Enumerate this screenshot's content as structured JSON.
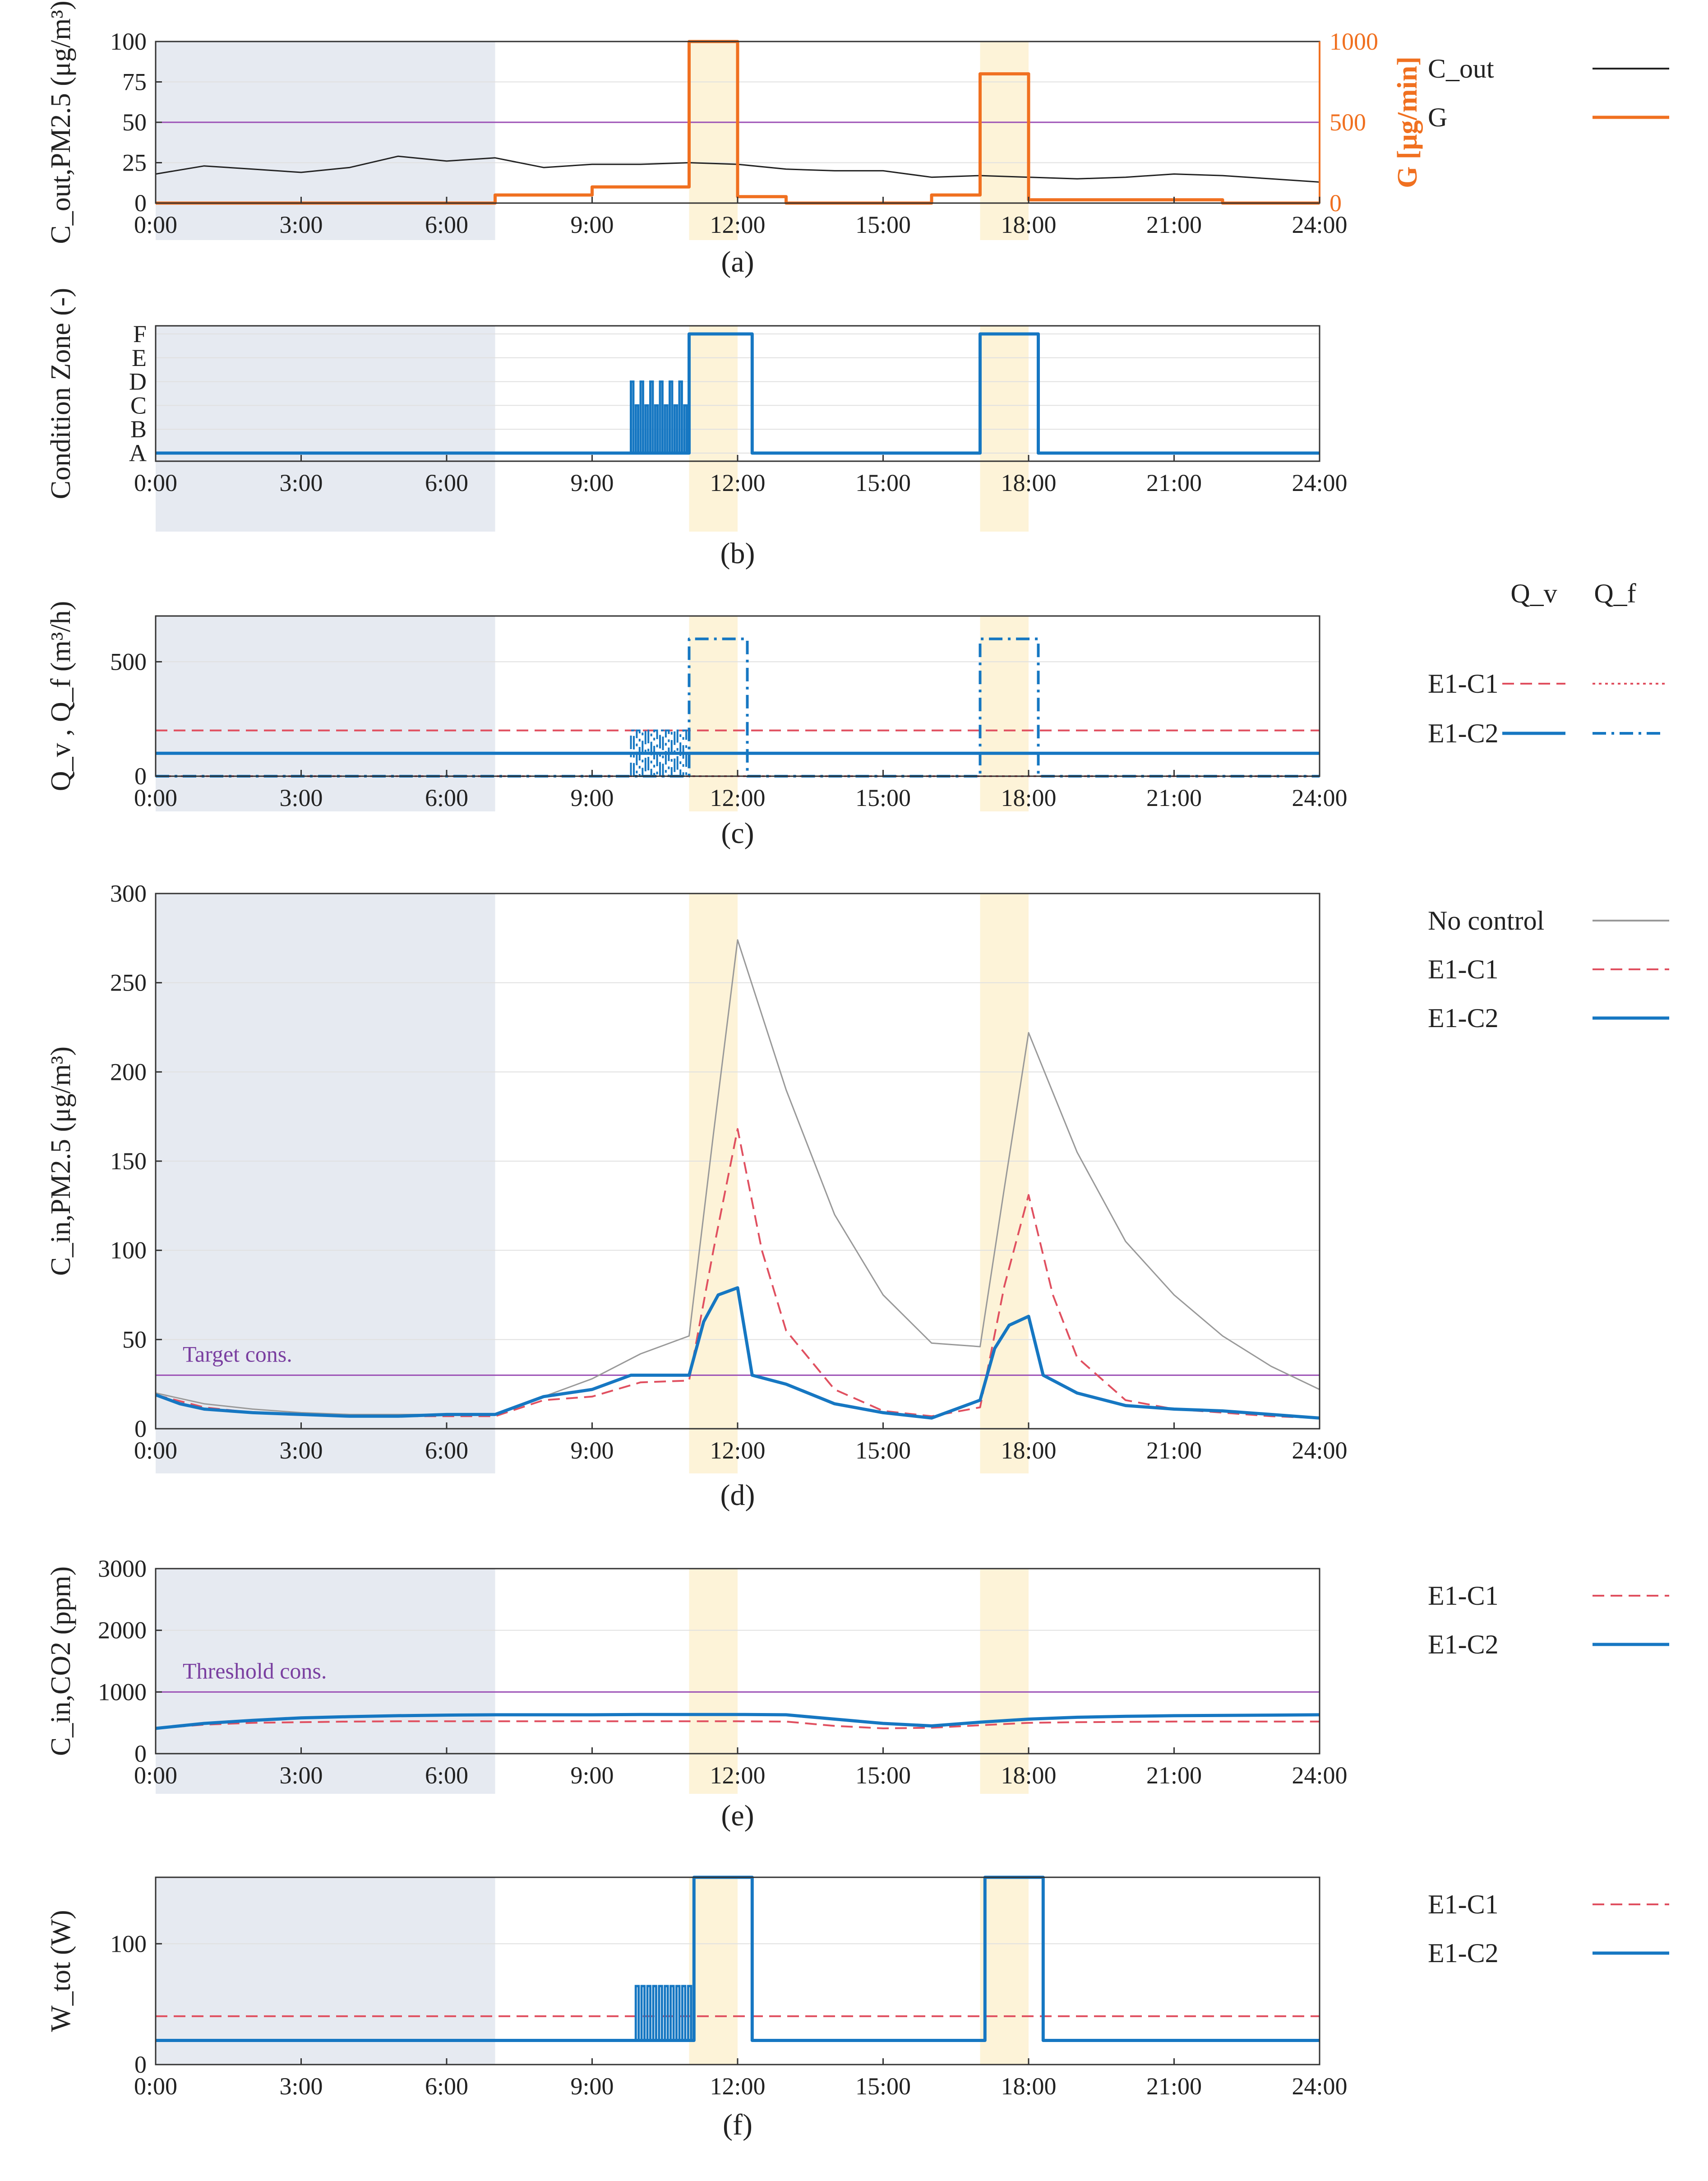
{
  "figure": {
    "colors": {
      "black": "#222222",
      "orange": "#f07020",
      "blue": "#1677c2",
      "red": "#e05060",
      "gray": "#999999",
      "purple": "#9b4fb5",
      "night_shade": "#e6eaf1",
      "event_shade": "#fdf3d8",
      "grid": "#e0e0e0"
    }
  },
  "chart_data": [
    {
      "panel": "a",
      "type": "line",
      "caption": "(a)",
      "ylabel": "C_out,PM2.5 (μg/m³)",
      "ylabel_right": "G [μg/min]",
      "x_ticks": [
        "0:00",
        "3:00",
        "6:00",
        "9:00",
        "12:00",
        "15:00",
        "18:00",
        "21:00",
        "24:00"
      ],
      "xlim": [
        0,
        24
      ],
      "ylim": [
        0,
        100
      ],
      "y_ticks": [
        "0",
        "25",
        "50",
        "75",
        "100"
      ],
      "ylim_right": [
        0,
        1000
      ],
      "y_ticks_right": [
        "0",
        "500",
        "1000"
      ],
      "shaded_ranges": {
        "night": [
          [
            0,
            7
          ]
        ],
        "events": [
          [
            11,
            12
          ],
          [
            17,
            18
          ]
        ]
      },
      "hline": 50,
      "legend": [
        {
          "label": "C_out",
          "style": "solid",
          "color": "#222222"
        },
        {
          "label": "G",
          "style": "solid",
          "color": "#f07020"
        }
      ],
      "series": [
        {
          "name": "C_out",
          "axis": "left",
          "x": [
            0,
            1,
            2,
            3,
            4,
            5,
            6,
            7,
            8,
            9,
            10,
            11,
            12,
            13,
            14,
            15,
            16,
            17,
            18,
            19,
            20,
            21,
            22,
            23,
            24
          ],
          "y": [
            18,
            23,
            21,
            19,
            22,
            29,
            26,
            28,
            22,
            24,
            24,
            25,
            24,
            21,
            20,
            20,
            16,
            17,
            16,
            15,
            16,
            18,
            17,
            15,
            13
          ]
        },
        {
          "name": "G",
          "axis": "right",
          "step": true,
          "x": [
            0,
            7,
            8,
            9,
            11,
            12,
            13,
            16,
            17,
            18,
            22,
            24
          ],
          "y": [
            0,
            50,
            50,
            100,
            1000,
            40,
            0,
            50,
            800,
            20,
            0,
            0
          ]
        }
      ]
    },
    {
      "panel": "b",
      "type": "line",
      "caption": "(b)",
      "ylabel": "Condition Zone (-)",
      "x_ticks": [
        "0:00",
        "3:00",
        "6:00",
        "9:00",
        "12:00",
        "15:00",
        "18:00",
        "21:00",
        "24:00"
      ],
      "xlim": [
        0,
        24
      ],
      "y_categories": [
        "A",
        "B",
        "C",
        "D",
        "E",
        "F"
      ],
      "shaded_ranges": {
        "night": [
          [
            0,
            7
          ]
        ],
        "events": [
          [
            11,
            12
          ],
          [
            17,
            18
          ]
        ]
      },
      "series": [
        {
          "name": "E1-C2",
          "step": true,
          "x": [
            0,
            9.8,
            11,
            12.3,
            17,
            18.2,
            24
          ],
          "y": [
            1,
            1,
            6,
            1,
            6,
            1,
            1
          ],
          "oscillation": {
            "from": 9.8,
            "to": 11,
            "low": 1,
            "high": 3,
            "cycles": 12,
            "peak_alt": 4
          }
        }
      ]
    },
    {
      "panel": "c",
      "type": "line",
      "caption": "(c)",
      "ylabel": "Q_v , Q_f (m³/h)",
      "x_ticks": [
        "0:00",
        "3:00",
        "6:00",
        "9:00",
        "12:00",
        "15:00",
        "18:00",
        "21:00",
        "24:00"
      ],
      "xlim": [
        0,
        24
      ],
      "ylim": [
        0,
        700
      ],
      "y_ticks": [
        "0",
        "500"
      ],
      "shaded_ranges": {
        "night": [
          [
            0,
            7
          ]
        ],
        "events": [
          [
            11,
            12
          ],
          [
            17,
            18
          ]
        ]
      },
      "legend": [
        {
          "label": "E1-C1",
          "Qv": "dashed",
          "Qf": "dotted",
          "color": "#e05060"
        },
        {
          "label": "E1-C2",
          "Qv": "solid",
          "Qf": "dashdot",
          "color": "#1677c2"
        }
      ],
      "legend_header": {
        "Qv": "Q_v",
        "Qf": "Q_f"
      },
      "series": [
        {
          "name": "E1-C1 Q_v",
          "x": [
            0,
            24
          ],
          "y": [
            200,
            200
          ]
        },
        {
          "name": "E1-C1 Q_f",
          "x": [
            0,
            24
          ],
          "y": [
            0,
            0
          ]
        },
        {
          "name": "E1-C2 Q_v",
          "x": [
            0,
            24
          ],
          "y": [
            100,
            100
          ]
        },
        {
          "name": "E1-C2 Q_f",
          "step": true,
          "x": [
            0,
            11,
            12.2,
            17,
            18.2,
            24
          ],
          "y": [
            0,
            600,
            0,
            600,
            0,
            0
          ],
          "oscillation": {
            "from": 9.8,
            "to": 11,
            "low": 0,
            "high": 200,
            "cycles": 10
          }
        }
      ]
    },
    {
      "panel": "d",
      "type": "line",
      "caption": "(d)",
      "ylabel": "C_in,PM2.5 (μg/m³)",
      "x_ticks": [
        "0:00",
        "3:00",
        "6:00",
        "9:00",
        "12:00",
        "15:00",
        "18:00",
        "21:00",
        "24:00"
      ],
      "xlim": [
        0,
        24
      ],
      "ylim": [
        0,
        300
      ],
      "y_ticks": [
        "0",
        "50",
        "100",
        "150",
        "200",
        "250",
        "300"
      ],
      "shaded_ranges": {
        "night": [
          [
            0,
            7
          ]
        ],
        "events": [
          [
            11,
            12
          ],
          [
            17,
            18
          ]
        ]
      },
      "hline": 30,
      "hline_label": "Target cons.",
      "legend": [
        {
          "label": "No control",
          "style": "solid",
          "color": "#999999"
        },
        {
          "label": "E1-C1",
          "style": "dashed",
          "color": "#e05060"
        },
        {
          "label": "E1-C2",
          "style": "solid",
          "color": "#1677c2"
        }
      ],
      "series": [
        {
          "name": "No control",
          "x": [
            0,
            1,
            2,
            3,
            4,
            5,
            6,
            7,
            8,
            9,
            10,
            11,
            11.5,
            12,
            13,
            14,
            15,
            16,
            17,
            17.5,
            18,
            19,
            20,
            21,
            22,
            23,
            24
          ],
          "y": [
            20,
            14,
            11,
            9,
            8,
            8,
            8,
            8,
            18,
            28,
            42,
            52,
            165,
            274,
            190,
            120,
            75,
            48,
            46,
            135,
            222,
            155,
            105,
            75,
            52,
            35,
            22
          ]
        },
        {
          "name": "E1-C1",
          "x": [
            0,
            1,
            2,
            3,
            4,
            5,
            6,
            7,
            8,
            9,
            10,
            11,
            11.5,
            12,
            12.5,
            13,
            14,
            15,
            16,
            17,
            17.5,
            18,
            18.5,
            19,
            20,
            21,
            22,
            23,
            24
          ],
          "y": [
            19,
            12,
            9,
            8,
            7,
            7,
            7,
            7,
            16,
            18,
            26,
            27,
            100,
            168,
            100,
            55,
            22,
            10,
            7,
            12,
            80,
            131,
            75,
            40,
            16,
            11,
            9,
            7,
            6
          ]
        },
        {
          "name": "E1-C2",
          "x": [
            0,
            0.5,
            1,
            2,
            3,
            4,
            5,
            6,
            7,
            8,
            9,
            9.8,
            10,
            11,
            11.3,
            11.6,
            12,
            12.3,
            13,
            14,
            15,
            16,
            17,
            17.3,
            17.6,
            18,
            18.3,
            19,
            20,
            21,
            22,
            23,
            24
          ],
          "y": [
            19,
            14,
            11,
            9,
            8,
            7,
            7,
            8,
            8,
            18,
            22,
            30,
            30,
            30,
            60,
            75,
            79,
            30,
            25,
            14,
            9,
            6,
            16,
            45,
            58,
            63,
            30,
            20,
            13,
            11,
            10,
            8,
            6
          ]
        }
      ]
    },
    {
      "panel": "e",
      "type": "line",
      "caption": "(e)",
      "ylabel": "C_in,CO2 (ppm)",
      "x_ticks": [
        "0:00",
        "3:00",
        "6:00",
        "9:00",
        "12:00",
        "15:00",
        "18:00",
        "21:00",
        "24:00"
      ],
      "xlim": [
        0,
        24
      ],
      "ylim": [
        0,
        3000
      ],
      "y_ticks": [
        "0",
        "1000",
        "2000",
        "3000"
      ],
      "shaded_ranges": {
        "night": [
          [
            0,
            7
          ]
        ],
        "events": [
          [
            11,
            12
          ],
          [
            17,
            18
          ]
        ]
      },
      "hline": 1000,
      "hline_label": "Threshold cons.",
      "legend": [
        {
          "label": "E1-C1",
          "style": "dashed",
          "color": "#e05060"
        },
        {
          "label": "E1-C2",
          "style": "solid",
          "color": "#1677c2"
        }
      ],
      "series": [
        {
          "name": "E1-C1",
          "x": [
            0,
            1,
            2,
            3,
            4,
            5,
            6,
            7,
            8,
            9,
            10,
            11,
            12,
            13,
            14,
            15,
            16,
            17,
            18,
            19,
            20,
            21,
            22,
            23,
            24
          ],
          "y": [
            410,
            470,
            500,
            510,
            520,
            525,
            525,
            525,
            525,
            525,
            525,
            525,
            525,
            520,
            450,
            410,
            420,
            460,
            500,
            510,
            515,
            520,
            520,
            520,
            520
          ]
        },
        {
          "name": "E1-C2",
          "x": [
            0,
            1,
            2,
            3,
            4,
            5,
            6,
            7,
            8,
            9,
            10,
            11,
            12,
            13,
            14,
            15,
            16,
            17,
            18,
            19,
            20,
            21,
            22,
            23,
            24
          ],
          "y": [
            410,
            490,
            540,
            580,
            600,
            615,
            625,
            630,
            630,
            630,
            635,
            635,
            635,
            630,
            560,
            490,
            450,
            510,
            560,
            590,
            605,
            615,
            620,
            625,
            630
          ]
        }
      ]
    },
    {
      "panel": "f",
      "type": "line",
      "caption": "(f)",
      "ylabel": "W_tot (W)",
      "x_ticks": [
        "0:00",
        "3:00",
        "6:00",
        "9:00",
        "12:00",
        "15:00",
        "18:00",
        "21:00",
        "24:00"
      ],
      "xlim": [
        0,
        24
      ],
      "ylim": [
        0,
        155
      ],
      "y_ticks": [
        "0",
        "100"
      ],
      "shaded_ranges": {
        "night": [
          [
            0,
            7
          ]
        ],
        "events": [
          [
            11,
            12
          ],
          [
            17,
            18
          ]
        ]
      },
      "legend": [
        {
          "label": "E1-C1",
          "style": "dashed",
          "color": "#e05060"
        },
        {
          "label": "E1-C2",
          "style": "solid",
          "color": "#1677c2"
        }
      ],
      "series": [
        {
          "name": "E1-C1",
          "x": [
            0,
            24
          ],
          "y": [
            40,
            40
          ]
        },
        {
          "name": "E1-C2",
          "step": true,
          "x": [
            0,
            11.1,
            12.3,
            17.1,
            18.3,
            24
          ],
          "y": [
            20,
            155,
            20,
            155,
            20,
            20
          ],
          "oscillation": {
            "from": 9.9,
            "to": 11.1,
            "low": 20,
            "high": 65,
            "cycles": 10
          }
        }
      ]
    }
  ]
}
